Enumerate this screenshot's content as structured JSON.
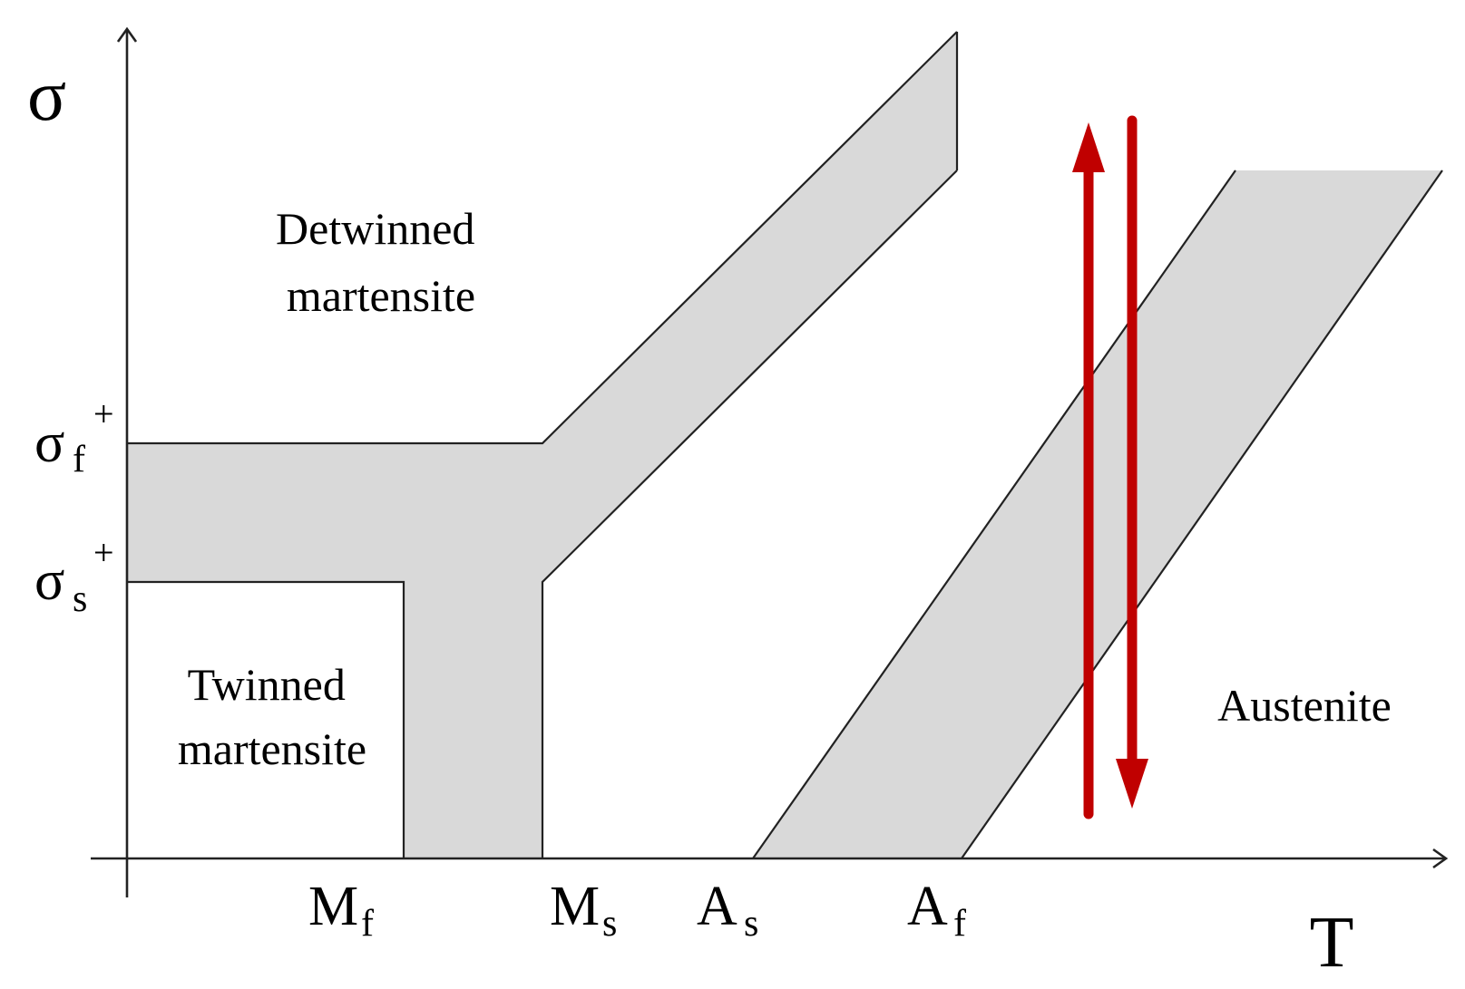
{
  "diagram": {
    "axes": {
      "y_title": "σ",
      "x_title": "T"
    },
    "stress_levels": [
      {
        "id": "sigma-f-plus",
        "base": "σ",
        "sub": "f",
        "sup": "+"
      },
      {
        "id": "sigma-s-plus",
        "base": "σ",
        "sub": "s",
        "sup": "+"
      }
    ],
    "temperature_marks": [
      {
        "id": "Mf",
        "base": "M",
        "sub": "f"
      },
      {
        "id": "Ms",
        "base": "M",
        "sub": "s"
      },
      {
        "id": "As",
        "base": "A",
        "sub": "s"
      },
      {
        "id": "Af",
        "base": "A",
        "sub": "f"
      }
    ],
    "regions": {
      "detwinned": [
        "Detwinned",
        "martensite"
      ],
      "twinned": [
        "Twinned",
        "martensite"
      ],
      "austenite": "Austenite"
    },
    "colors": {
      "band_fill": "#d9d9d9",
      "arrow": "#c00000",
      "line": "#222222"
    },
    "arrows": [
      {
        "id": "loading",
        "direction": "up"
      },
      {
        "id": "unloading",
        "direction": "down"
      }
    ]
  }
}
